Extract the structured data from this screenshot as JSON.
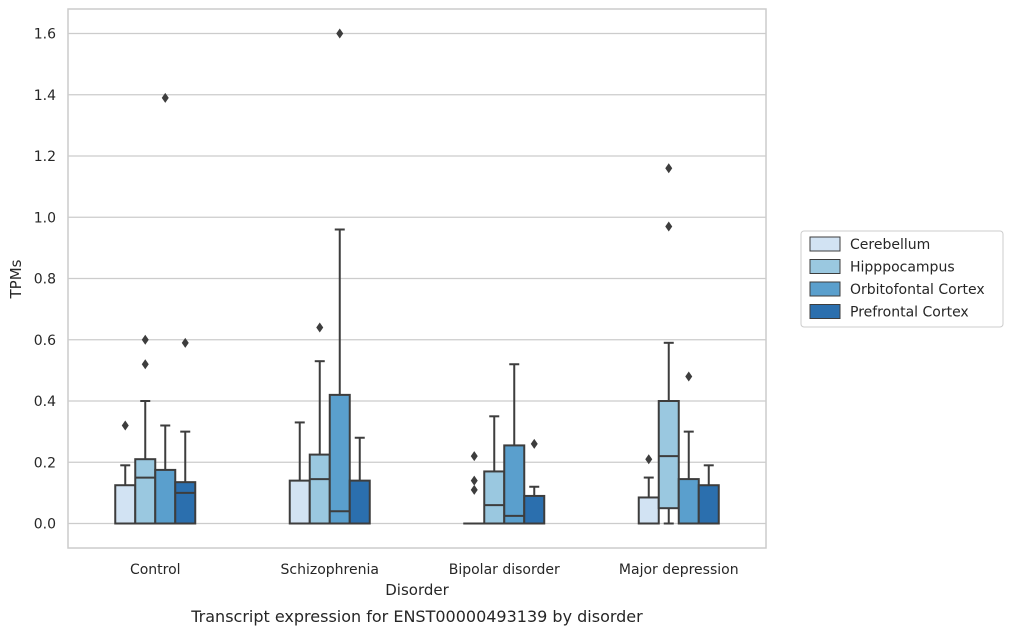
{
  "chart_data": {
    "type": "boxplot",
    "title": "Transcript expression for ENST00000493139 by disorder",
    "xlabel": "Disorder",
    "ylabel": "TPMs",
    "ylim": [
      -0.08,
      1.68
    ],
    "yticks": [
      0.0,
      0.2,
      0.4,
      0.6,
      0.8,
      1.0,
      1.2,
      1.4,
      1.6
    ],
    "ytick_labels": [
      "0.0",
      "0.2",
      "0.4",
      "0.6",
      "0.8",
      "1.0",
      "1.2",
      "1.4",
      "1.6"
    ],
    "grid": "horizontal",
    "legend_placement": "right",
    "categories": [
      "Control",
      "Schizophrenia",
      "Bipolar disorder",
      "Major depression"
    ],
    "series": [
      {
        "name": "Cerebellum",
        "color": "#d2e3f3",
        "boxes": [
          {
            "min": 0.0,
            "q1": 0.0,
            "median": 0.0,
            "q3": 0.125,
            "max": 0.19,
            "outliers": [
              0.32
            ]
          },
          {
            "min": 0.0,
            "q1": 0.0,
            "median": 0.0,
            "q3": 0.14,
            "max": 0.33,
            "outliers": []
          },
          {
            "min": 0.0,
            "q1": 0.0,
            "median": 0.0,
            "q3": 0.0,
            "max": 0.0,
            "outliers": [
              0.22,
              0.14,
              0.11
            ]
          },
          {
            "min": 0.0,
            "q1": 0.0,
            "median": 0.0,
            "q3": 0.085,
            "max": 0.15,
            "outliers": [
              0.21
            ]
          }
        ]
      },
      {
        "name": "Hipppocampus",
        "color": "#9ac8e0",
        "boxes": [
          {
            "min": 0.0,
            "q1": 0.0,
            "median": 0.15,
            "q3": 0.21,
            "max": 0.4,
            "outliers": [
              0.52,
              0.6
            ]
          },
          {
            "min": 0.0,
            "q1": 0.0,
            "median": 0.145,
            "q3": 0.225,
            "max": 0.53,
            "outliers": [
              0.64
            ]
          },
          {
            "min": 0.0,
            "q1": 0.0,
            "median": 0.06,
            "q3": 0.17,
            "max": 0.35,
            "outliers": []
          },
          {
            "min": 0.0,
            "q1": 0.05,
            "median": 0.22,
            "q3": 0.4,
            "max": 0.59,
            "outliers": [
              0.97,
              1.16
            ]
          }
        ]
      },
      {
        "name": "Orbitofontal Cortex",
        "color": "#5a9fcd",
        "boxes": [
          {
            "min": 0.0,
            "q1": 0.0,
            "median": 0.0,
            "q3": 0.175,
            "max": 0.32,
            "outliers": [
              1.39
            ]
          },
          {
            "min": 0.0,
            "q1": 0.0,
            "median": 0.04,
            "q3": 0.42,
            "max": 0.96,
            "outliers": [
              1.6
            ]
          },
          {
            "min": 0.0,
            "q1": 0.0,
            "median": 0.025,
            "q3": 0.255,
            "max": 0.52,
            "outliers": []
          },
          {
            "min": 0.0,
            "q1": 0.0,
            "median": 0.0,
            "q3": 0.145,
            "max": 0.3,
            "outliers": [
              0.48
            ]
          }
        ]
      },
      {
        "name": "Prefrontal Cortex",
        "color": "#2b6fae",
        "boxes": [
          {
            "min": 0.0,
            "q1": 0.0,
            "median": 0.1,
            "q3": 0.135,
            "max": 0.3,
            "outliers": [
              0.59
            ]
          },
          {
            "min": 0.0,
            "q1": 0.0,
            "median": 0.0,
            "q3": 0.14,
            "max": 0.28,
            "outliers": []
          },
          {
            "min": 0.0,
            "q1": 0.0,
            "median": 0.0,
            "q3": 0.09,
            "max": 0.12,
            "outliers": [
              0.26
            ]
          },
          {
            "min": 0.0,
            "q1": 0.0,
            "median": 0.0,
            "q3": 0.125,
            "max": 0.19,
            "outliers": []
          }
        ]
      }
    ]
  }
}
